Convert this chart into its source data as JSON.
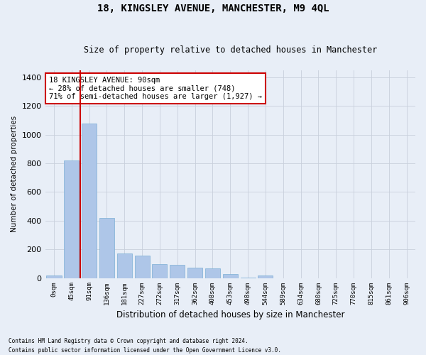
{
  "title": "18, KINGSLEY AVENUE, MANCHESTER, M9 4QL",
  "subtitle": "Size of property relative to detached houses in Manchester",
  "xlabel": "Distribution of detached houses by size in Manchester",
  "ylabel": "Number of detached properties",
  "footer_line1": "Contains HM Land Registry data © Crown copyright and database right 2024.",
  "footer_line2": "Contains public sector information licensed under the Open Government Licence v3.0.",
  "categories": [
    "0sqm",
    "45sqm",
    "91sqm",
    "136sqm",
    "181sqm",
    "227sqm",
    "272sqm",
    "317sqm",
    "362sqm",
    "408sqm",
    "453sqm",
    "498sqm",
    "544sqm",
    "589sqm",
    "634sqm",
    "680sqm",
    "725sqm",
    "770sqm",
    "815sqm",
    "861sqm",
    "906sqm"
  ],
  "values": [
    20,
    820,
    1080,
    420,
    170,
    155,
    95,
    90,
    70,
    68,
    28,
    5,
    18,
    0,
    0,
    0,
    0,
    0,
    0,
    0,
    0
  ],
  "bar_color": "#aec6e8",
  "bar_edge_color": "#7bafd4",
  "grid_color": "#c8d0dc",
  "background_color": "#e8eef7",
  "vline_x_index": 2,
  "vline_color": "#cc0000",
  "annotation_text": "18 KINGSLEY AVENUE: 90sqm\n← 28% of detached houses are smaller (748)\n71% of semi-detached houses are larger (1,927) →",
  "annotation_box_color": "#ffffff",
  "annotation_box_edge": "#cc0000",
  "ylim": [
    0,
    1450
  ],
  "yticks": [
    0,
    200,
    400,
    600,
    800,
    1000,
    1200,
    1400
  ]
}
